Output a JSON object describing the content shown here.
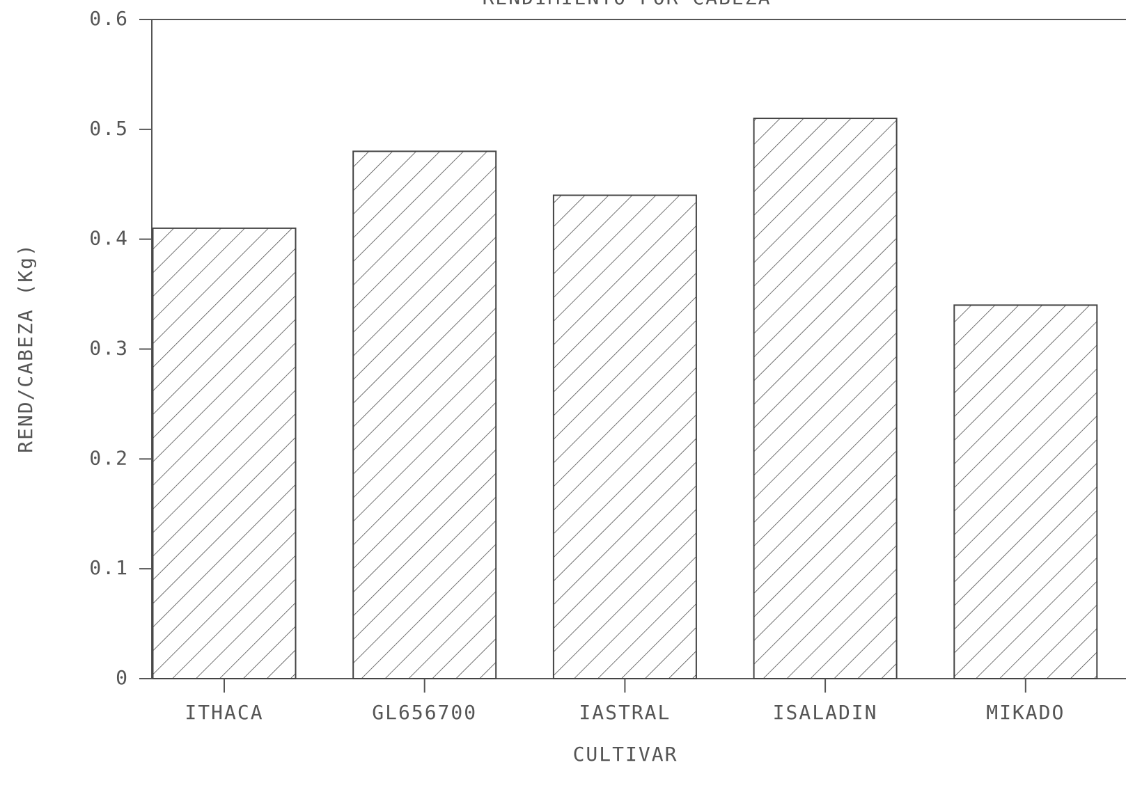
{
  "chart_data": {
    "type": "bar",
    "title": "RENDIMIENTO POR CABEZA",
    "categories": [
      "ITHACA",
      "GL656700",
      "IASTRAL",
      "ISALADIN",
      "MIKADO"
    ],
    "values": [
      0.41,
      0.48,
      0.44,
      0.51,
      0.34
    ],
    "color": "#444444",
    "xlabel": "CULTIVAR",
    "ylabel": "REND/CABEZA (Kg)",
    "ylim": [
      0,
      0.6
    ],
    "yticks": [
      0,
      0.1,
      0.2,
      0.3,
      0.4,
      0.5,
      0.6
    ]
  }
}
